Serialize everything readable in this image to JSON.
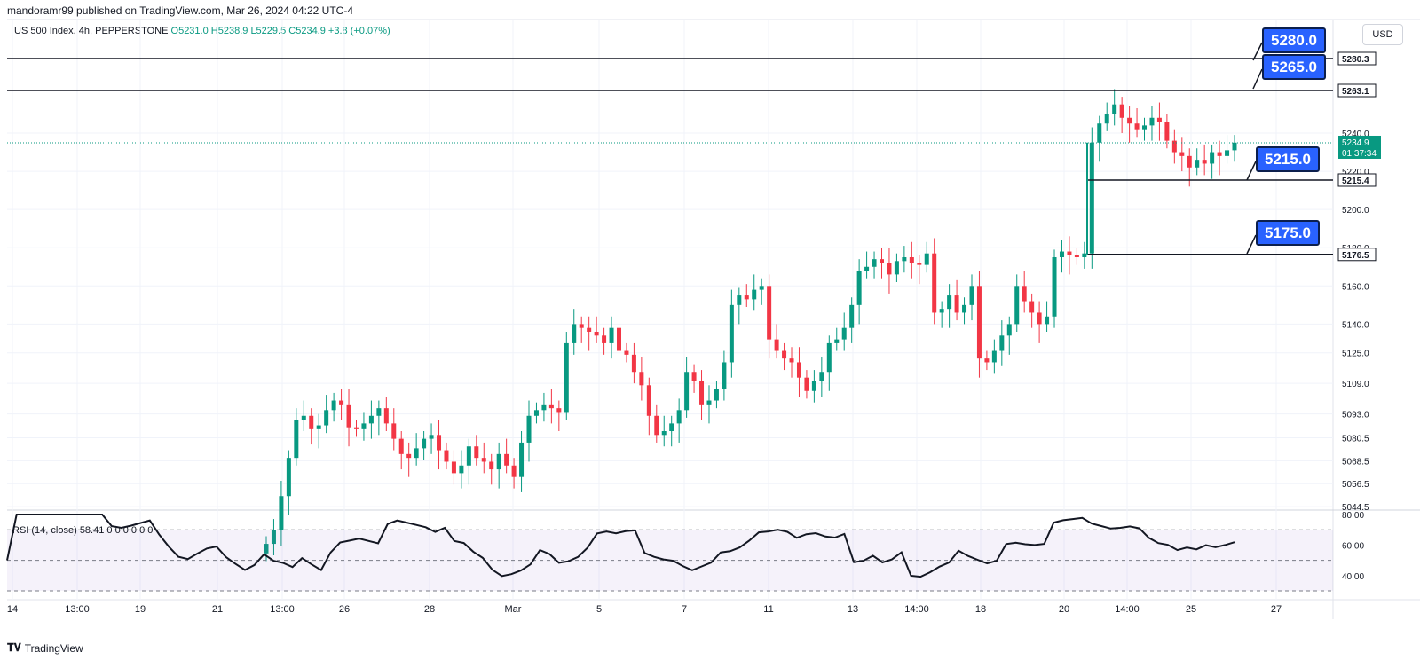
{
  "header": {
    "published": "mandoramr99 published on TradingView.com, Mar 26, 2024 04:22 UTC-4",
    "symbol": "US 500 Index, 4h, PEPPERSTONE",
    "ohlc": {
      "o": "O5231.0",
      "h": "H5238.9",
      "l": "L5229.5",
      "c": "C5234.9",
      "chg": "+3.8 (+0.07%)"
    },
    "currency": "USD"
  },
  "footer": {
    "brand": "TradingView"
  },
  "callouts": [
    "5280.0",
    "5265.0",
    "5215.0",
    "5175.0"
  ],
  "chart_data": {
    "type": "candlestick",
    "y_ticks": [
      "5240.0",
      "5220.0",
      "5200.0",
      "5180.0",
      "5160.0",
      "5140.0",
      "5125.0",
      "5109.0",
      "5093.0",
      "5080.5",
      "5068.5",
      "5056.5",
      "5044.5"
    ],
    "x_ticks": [
      "14",
      "13:00",
      "19",
      "21",
      "13:00",
      "26",
      "28",
      "Mar",
      "5",
      "7",
      "11",
      "13",
      "14:00",
      "18",
      "20",
      "14:00",
      "25",
      "27"
    ],
    "horizontal_levels": [
      {
        "label": "5280.3",
        "value": 5280.3
      },
      {
        "label": "5263.1",
        "value": 5263.1
      },
      {
        "label": "5215.4",
        "value": 5215.4
      },
      {
        "label": "5176.5",
        "value": 5176.5
      }
    ],
    "last_price": {
      "value": "5234.9",
      "countdown": "01:37:34"
    },
    "candles_close": [
      5025,
      5032,
      5050,
      5070,
      5090,
      5092,
      5085,
      5087,
      5095,
      5100,
      5098,
      5086,
      5085,
      5088,
      5092,
      5096,
      5088,
      5080,
      5072,
      5070,
      5075,
      5080,
      5082,
      5074,
      5068,
      5062,
      5066,
      5076,
      5070,
      5068,
      5064,
      5072,
      5066,
      5060,
      5078,
      5092,
      5095,
      5098,
      5096,
      5094,
      5130,
      5140,
      5138,
      5136,
      5134,
      5130,
      5138,
      5126,
      5124,
      5115,
      5108,
      5092,
      5082,
      5084,
      5088,
      5095,
      5115,
      5110,
      5098,
      5100,
      5106,
      5120,
      5150,
      5155,
      5153,
      5158,
      5160,
      5132,
      5126,
      5122,
      5120,
      5112,
      5105,
      5110,
      5115,
      5130,
      5132,
      5138,
      5150,
      5168,
      5170,
      5174,
      5172,
      5166,
      5173,
      5175,
      5172,
      5171,
      5177,
      5146,
      5148,
      5155,
      5146,
      5150,
      5160,
      5122,
      5120,
      5126,
      5134,
      5140,
      5160,
      5152,
      5146,
      5140,
      5144,
      5175,
      5178,
      5176,
      5175,
      5177,
      5235,
      5245,
      5250,
      5255,
      5248,
      5245,
      5242,
      5244,
      5248,
      5246,
      5236,
      5230,
      5228,
      5222,
      5226,
      5224,
      5230,
      5228,
      5231,
      5235
    ],
    "rsi": {
      "label": "RSI (14, close)",
      "value": "58.41",
      "extra": "0 0 0 0 0 0",
      "y_ticks": [
        "80.00",
        "60.00",
        "40.00"
      ],
      "upper": 70,
      "lower": 30
    }
  }
}
